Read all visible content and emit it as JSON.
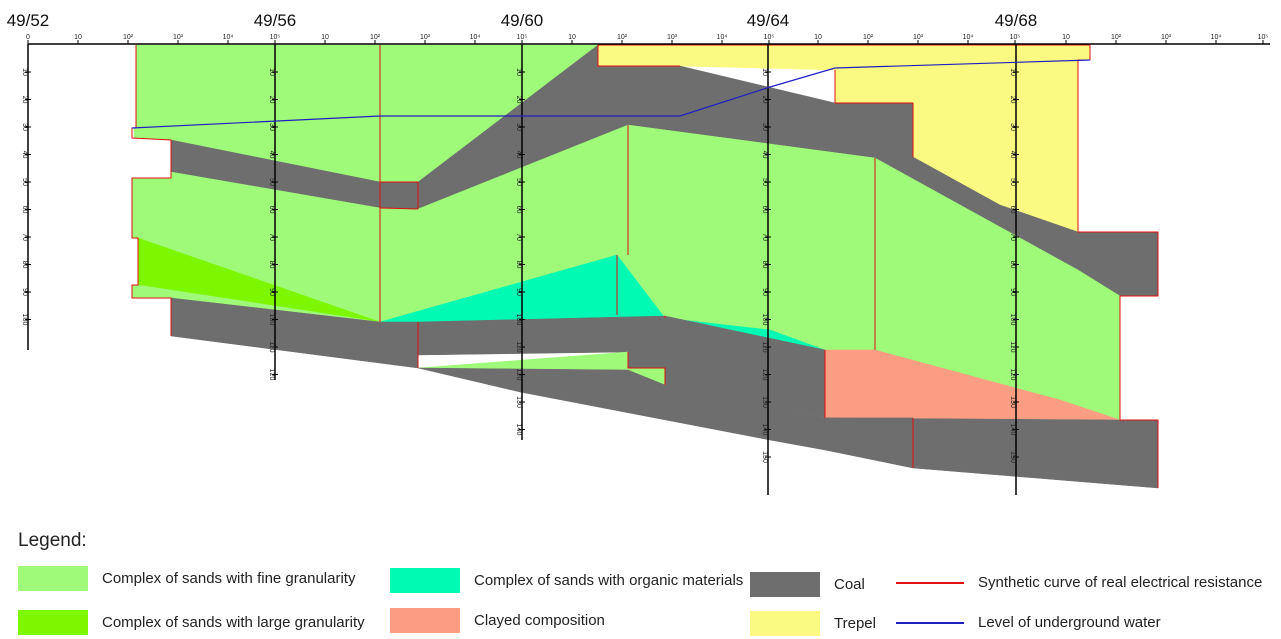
{
  "wells": [
    "49/52",
    "49/56",
    "49/60",
    "49/64",
    "49/68"
  ],
  "scale_ticks": [
    "0",
    "10",
    "10²",
    "10³",
    "10⁴",
    "10⁵"
  ],
  "depth_ticks": [
    "10",
    "20",
    "30",
    "40",
    "50",
    "60",
    "70",
    "80",
    "90",
    "100",
    "110",
    "120",
    "130",
    "140",
    "150"
  ],
  "legend": {
    "title": "Legend:",
    "items": [
      {
        "key": "fine_sand",
        "label": "Complex of sands with fine granularity",
        "color": "#9efa78"
      },
      {
        "key": "large_sand",
        "label": "Complex of sands with large granularity",
        "color": "#7df700"
      },
      {
        "key": "organic_sand",
        "label": "Complex of sands with organic materials",
        "color": "#00fab4"
      },
      {
        "key": "clay",
        "label": "Clayed composition",
        "color": "#fb9d82"
      },
      {
        "key": "coal",
        "label": "Coal",
        "color": "#6e6e6e"
      },
      {
        "key": "trepel",
        "label": "Trepel",
        "color": "#fafa82"
      },
      {
        "key": "resistance_curve",
        "label": "Synthetic curve of real electrical resistance",
        "color": "#e01010"
      },
      {
        "key": "water_level",
        "label": "Level of underground water",
        "color": "#2020c0"
      }
    ]
  }
}
